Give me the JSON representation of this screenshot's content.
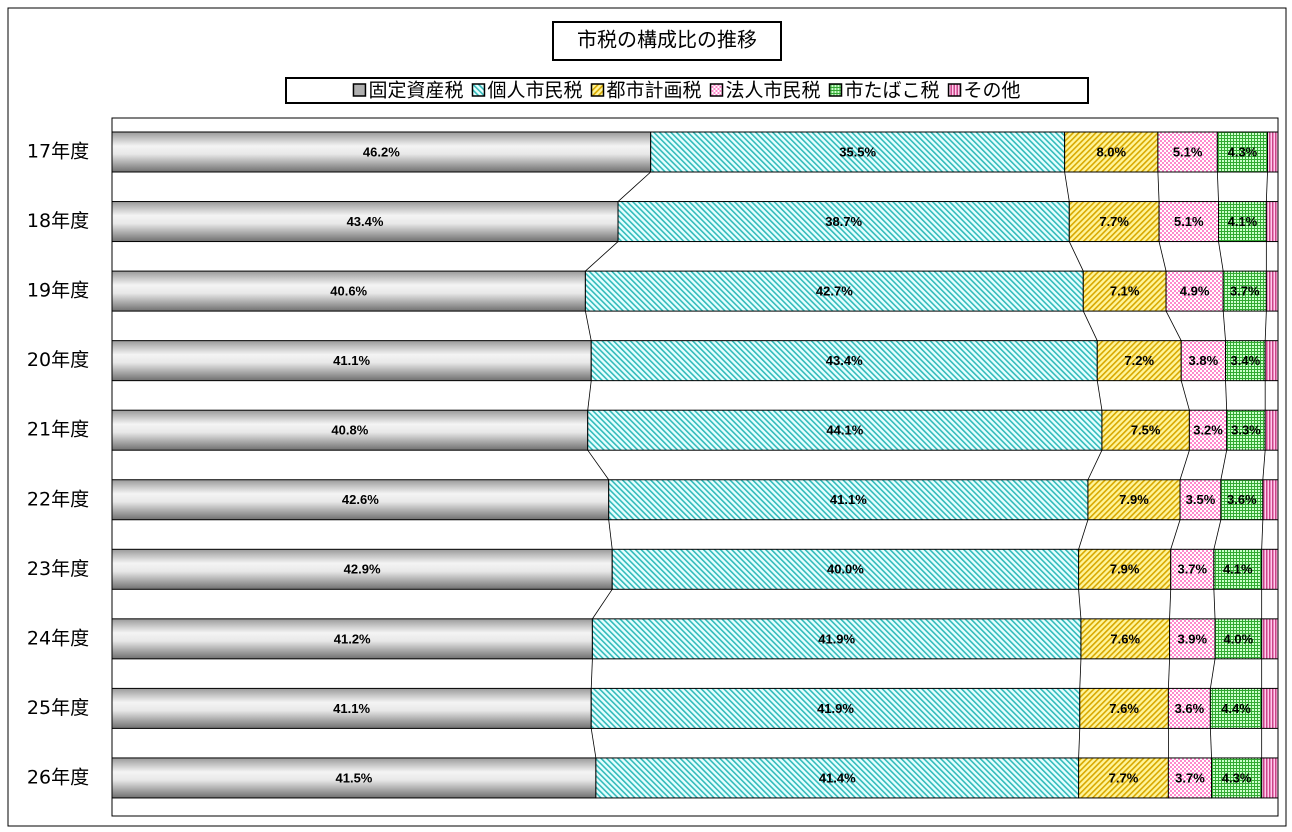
{
  "chart_data": {
    "type": "stacked_barh",
    "title": "市税の構成比の推移",
    "categories": [
      "17年度",
      "18年度",
      "19年度",
      "20年度",
      "21年度",
      "22年度",
      "23年度",
      "24年度",
      "25年度",
      "26年度"
    ],
    "xlim": [
      0,
      100
    ],
    "series": [
      {
        "name": "固定資産税",
        "color": "#808080",
        "values": [
          46.2,
          43.4,
          40.6,
          41.1,
          40.8,
          42.6,
          42.9,
          41.2,
          41.1,
          41.5
        ],
        "value_labels": [
          "46.2%",
          "43.4%",
          "40.6%",
          "41.1%",
          "40.8%",
          "42.6%",
          "42.9%",
          "41.2%",
          "41.1%",
          "41.5%"
        ]
      },
      {
        "name": "個人市民税",
        "color": "#33bbbb",
        "values": [
          35.5,
          38.7,
          42.7,
          43.4,
          44.1,
          41.1,
          40.0,
          41.9,
          41.9,
          41.4
        ],
        "value_labels": [
          "35.5%",
          "38.7%",
          "42.7%",
          "43.4%",
          "44.1%",
          "41.1%",
          "40.0%",
          "41.9%",
          "41.9%",
          "41.4%"
        ]
      },
      {
        "name": "都市計画税",
        "color": "#d8a800",
        "values": [
          8.0,
          7.7,
          7.1,
          7.2,
          7.5,
          7.9,
          7.9,
          7.6,
          7.6,
          7.7
        ],
        "value_labels": [
          "8.0%",
          "7.7%",
          "7.1%",
          "7.2%",
          "7.5%",
          "7.9%",
          "7.9%",
          "7.6%",
          "7.6%",
          "7.7%"
        ]
      },
      {
        "name": "法人市民税",
        "color": "#ff88cc",
        "values": [
          5.1,
          5.1,
          4.9,
          3.8,
          3.2,
          3.5,
          3.7,
          3.9,
          3.6,
          3.7
        ],
        "value_labels": [
          "5.1%",
          "5.1%",
          "4.9%",
          "3.8%",
          "3.2%",
          "3.5%",
          "3.7%",
          "3.9%",
          "3.6%",
          "3.7%"
        ]
      },
      {
        "name": "市たばこ税",
        "color": "#33aa33",
        "values": [
          4.3,
          4.1,
          3.7,
          3.4,
          3.3,
          3.6,
          4.1,
          4.0,
          4.4,
          4.3
        ],
        "value_labels": [
          "4.3%",
          "4.1%",
          "3.7%",
          "3.4%",
          "3.3%",
          "3.6%",
          "4.1%",
          "4.0%",
          "4.4%",
          "4.3%"
        ]
      },
      {
        "name": "その他",
        "color": "#cc4488",
        "values": [
          0.9,
          1.0,
          1.0,
          1.1,
          1.1,
          1.3,
          1.4,
          1.4,
          1.4,
          1.4
        ]
      }
    ]
  }
}
